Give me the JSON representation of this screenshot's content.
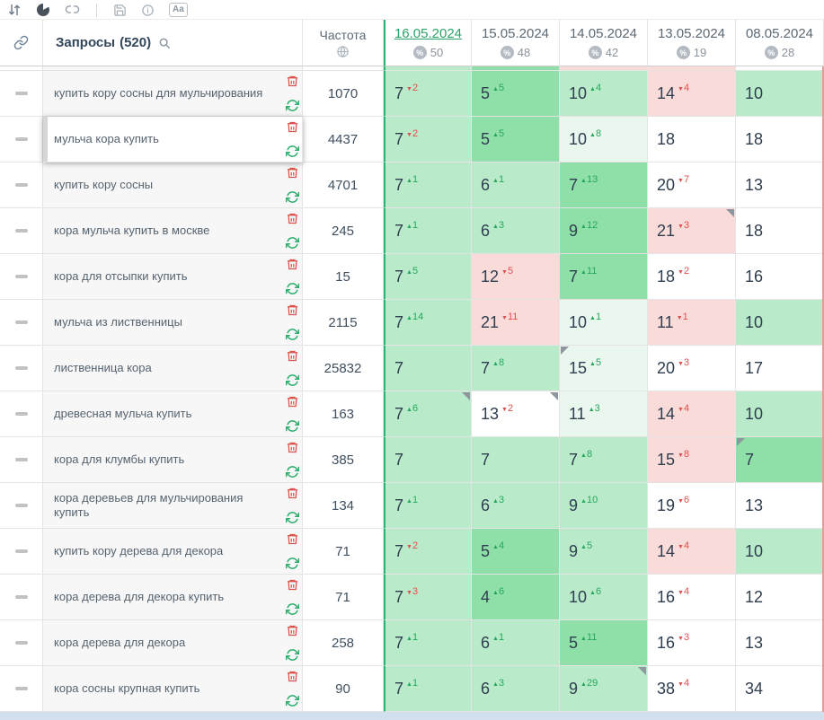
{
  "toolbar": {
    "case_label": "Aa"
  },
  "header": {
    "queries_label": "Запросы",
    "queries_count": "(520)",
    "frequency_label": "Частота",
    "dates": [
      {
        "label": "16.05.2024",
        "percent": "50",
        "selected": true
      },
      {
        "label": "15.05.2024",
        "percent": "48",
        "selected": false
      },
      {
        "label": "14.05.2024",
        "percent": "42",
        "selected": false
      },
      {
        "label": "13.05.2024",
        "percent": "19",
        "selected": false
      },
      {
        "label": "08.05.2024",
        "percent": "28",
        "selected": false
      }
    ]
  },
  "icons": {
    "sort-icon": "⇅",
    "pie-chart-icon": "◕",
    "unlink-icon": "🔗",
    "save-icon": "💾",
    "info-icon": "ⓘ",
    "text-case-icon": "Aa",
    "link-icon": "🔗",
    "search-icon": "🔍",
    "globe-icon": "🌐",
    "percent-icon": "%",
    "delete-icon": "🗑",
    "refresh-icon": "⟳",
    "drag-handle-icon": "—",
    "delta-up-arrow": "▲",
    "delta-down-arrow": "▼"
  },
  "colors": {
    "accent_green": "#2fb173",
    "selected_date": "#2aa368",
    "delta_up": "#27a75c",
    "delta_down": "#e05050",
    "right_edge_strip": "#e89a94",
    "scrollbar_track": "#d2dfec",
    "cell_bg": {
      "w": "#ffffff",
      "g1": "#e9f7ee",
      "g2": "#b9ebca",
      "g3": "#8fdfa9",
      "r1": "#f9dbd9"
    }
  },
  "partial_row_bgs": [
    "g2",
    "g3",
    "r1",
    "r1",
    "w"
  ],
  "rows": [
    {
      "keyword": "купить кору сосны для мульчирования",
      "frequency": "1070",
      "cells": [
        {
          "v": "7",
          "d": "2",
          "dir": "down",
          "bg": "g2"
        },
        {
          "v": "5",
          "d": "5",
          "dir": "up",
          "bg": "g3"
        },
        {
          "v": "10",
          "d": "4",
          "dir": "up",
          "bg": "g2"
        },
        {
          "v": "14",
          "d": "4",
          "dir": "down",
          "bg": "r1"
        },
        {
          "v": "10",
          "bg": "g2"
        }
      ]
    },
    {
      "keyword": "мульча кора купить",
      "frequency": "4437",
      "hovered": true,
      "cells": [
        {
          "v": "7",
          "d": "2",
          "dir": "down",
          "bg": "g2"
        },
        {
          "v": "5",
          "d": "5",
          "dir": "up",
          "bg": "g3"
        },
        {
          "v": "10",
          "d": "8",
          "dir": "up",
          "bg": "g1"
        },
        {
          "v": "18",
          "bg": "w"
        },
        {
          "v": "18",
          "bg": "w"
        }
      ]
    },
    {
      "keyword": "купить кору сосны",
      "frequency": "4701",
      "cells": [
        {
          "v": "7",
          "d": "1",
          "dir": "up",
          "bg": "g2"
        },
        {
          "v": "6",
          "d": "1",
          "dir": "up",
          "bg": "g2"
        },
        {
          "v": "7",
          "d": "13",
          "dir": "up",
          "bg": "g3"
        },
        {
          "v": "20",
          "d": "7",
          "dir": "down",
          "bg": "w"
        },
        {
          "v": "13",
          "bg": "w"
        }
      ]
    },
    {
      "keyword": "кора мульча купить в москве",
      "frequency": "245",
      "cells": [
        {
          "v": "7",
          "d": "1",
          "dir": "up",
          "bg": "g2"
        },
        {
          "v": "6",
          "d": "3",
          "dir": "up",
          "bg": "g2"
        },
        {
          "v": "9",
          "d": "12",
          "dir": "up",
          "bg": "g3"
        },
        {
          "v": "21",
          "d": "3",
          "dir": "down",
          "bg": "r1",
          "c": "tr"
        },
        {
          "v": "18",
          "bg": "w"
        }
      ]
    },
    {
      "keyword": "кора для отсыпки купить",
      "frequency": "15",
      "cells": [
        {
          "v": "7",
          "d": "5",
          "dir": "up",
          "bg": "g2"
        },
        {
          "v": "12",
          "d": "5",
          "dir": "down",
          "bg": "r1"
        },
        {
          "v": "7",
          "d": "11",
          "dir": "up",
          "bg": "g3"
        },
        {
          "v": "18",
          "d": "2",
          "dir": "down",
          "bg": "w"
        },
        {
          "v": "16",
          "bg": "w"
        }
      ]
    },
    {
      "keyword": "мульча из лиственницы",
      "frequency": "2115",
      "cells": [
        {
          "v": "7",
          "d": "14",
          "dir": "up",
          "bg": "g2"
        },
        {
          "v": "21",
          "d": "11",
          "dir": "down",
          "bg": "r1"
        },
        {
          "v": "10",
          "d": "1",
          "dir": "up",
          "bg": "g1"
        },
        {
          "v": "11",
          "d": "1",
          "dir": "down",
          "bg": "r1"
        },
        {
          "v": "10",
          "bg": "g2"
        }
      ]
    },
    {
      "keyword": "лиственница кора",
      "frequency": "25832",
      "cells": [
        {
          "v": "7",
          "bg": "g2"
        },
        {
          "v": "7",
          "d": "8",
          "dir": "up",
          "bg": "g2"
        },
        {
          "v": "15",
          "d": "5",
          "dir": "up",
          "bg": "g1",
          "c": "tl"
        },
        {
          "v": "20",
          "d": "3",
          "dir": "down",
          "bg": "w"
        },
        {
          "v": "17",
          "bg": "w"
        }
      ]
    },
    {
      "keyword": "древесная мульча купить",
      "frequency": "163",
      "cells": [
        {
          "v": "7",
          "d": "6",
          "dir": "up",
          "bg": "g2",
          "c": "tr"
        },
        {
          "v": "13",
          "d": "2",
          "dir": "down",
          "bg": "w",
          "c": "tr"
        },
        {
          "v": "11",
          "d": "3",
          "dir": "up",
          "bg": "g1"
        },
        {
          "v": "14",
          "d": "4",
          "dir": "down",
          "bg": "r1"
        },
        {
          "v": "10",
          "bg": "g2"
        }
      ]
    },
    {
      "keyword": "кора для клумбы купить",
      "frequency": "385",
      "cells": [
        {
          "v": "7",
          "bg": "g2"
        },
        {
          "v": "7",
          "bg": "g2"
        },
        {
          "v": "7",
          "d": "8",
          "dir": "up",
          "bg": "g2"
        },
        {
          "v": "15",
          "d": "8",
          "dir": "down",
          "bg": "r1"
        },
        {
          "v": "7",
          "bg": "g3",
          "c": "tl"
        }
      ]
    },
    {
      "keyword": "кора деревьев для мульчирования купить",
      "frequency": "134",
      "cells": [
        {
          "v": "7",
          "d": "1",
          "dir": "up",
          "bg": "g2"
        },
        {
          "v": "6",
          "d": "3",
          "dir": "up",
          "bg": "g2"
        },
        {
          "v": "9",
          "d": "10",
          "dir": "up",
          "bg": "g2"
        },
        {
          "v": "19",
          "d": "6",
          "dir": "down",
          "bg": "w"
        },
        {
          "v": "13",
          "bg": "w"
        }
      ]
    },
    {
      "keyword": "купить кору дерева для декора",
      "frequency": "71",
      "cells": [
        {
          "v": "7",
          "d": "2",
          "dir": "down",
          "bg": "g2"
        },
        {
          "v": "5",
          "d": "4",
          "dir": "up",
          "bg": "g3"
        },
        {
          "v": "9",
          "d": "5",
          "dir": "up",
          "bg": "g2"
        },
        {
          "v": "14",
          "d": "4",
          "dir": "down",
          "bg": "r1"
        },
        {
          "v": "10",
          "bg": "g2"
        }
      ]
    },
    {
      "keyword": "кора дерева для декора купить",
      "frequency": "71",
      "cells": [
        {
          "v": "7",
          "d": "3",
          "dir": "down",
          "bg": "g2"
        },
        {
          "v": "4",
          "d": "6",
          "dir": "up",
          "bg": "g3"
        },
        {
          "v": "10",
          "d": "6",
          "dir": "up",
          "bg": "g2"
        },
        {
          "v": "16",
          "d": "4",
          "dir": "down",
          "bg": "w"
        },
        {
          "v": "12",
          "bg": "w"
        }
      ]
    },
    {
      "keyword": "кора дерева для декора",
      "frequency": "258",
      "cells": [
        {
          "v": "7",
          "d": "1",
          "dir": "up",
          "bg": "g2"
        },
        {
          "v": "6",
          "d": "1",
          "dir": "up",
          "bg": "g2"
        },
        {
          "v": "5",
          "d": "11",
          "dir": "up",
          "bg": "g3"
        },
        {
          "v": "16",
          "d": "3",
          "dir": "down",
          "bg": "w"
        },
        {
          "v": "13",
          "bg": "w"
        }
      ]
    },
    {
      "keyword": "кора сосны крупная купить",
      "frequency": "90",
      "cells": [
        {
          "v": "7",
          "d": "1",
          "dir": "up",
          "bg": "g2"
        },
        {
          "v": "6",
          "d": "3",
          "dir": "up",
          "bg": "g2"
        },
        {
          "v": "9",
          "d": "29",
          "dir": "up",
          "bg": "g2",
          "c": "tr"
        },
        {
          "v": "38",
          "d": "4",
          "dir": "down",
          "bg": "w"
        },
        {
          "v": "34",
          "bg": "w"
        }
      ]
    }
  ]
}
